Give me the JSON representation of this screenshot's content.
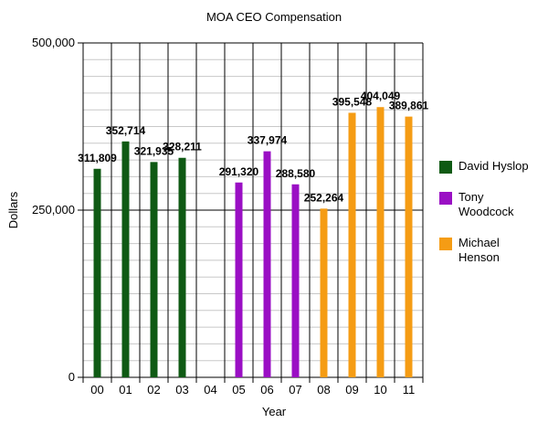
{
  "chart_data": {
    "type": "bar",
    "title": "MOA CEO Compensation",
    "xlabel": "Year",
    "ylabel": "Dollars",
    "ylim": [
      0,
      500000
    ],
    "yticks": [
      0,
      250000,
      500000
    ],
    "ytick_labels": [
      "0",
      "250,000",
      "500,000"
    ],
    "grid": true,
    "legend_position": "right",
    "categories": [
      "00",
      "01",
      "02",
      "03",
      "04",
      "05",
      "06",
      "07",
      "08",
      "09",
      "10",
      "11"
    ],
    "series": [
      {
        "name": "David Hyslop",
        "color": "#0f5a14",
        "values": [
          311809,
          352714,
          321935,
          328211,
          null,
          null,
          null,
          null,
          null,
          null,
          null,
          null
        ],
        "labels": [
          "311,809",
          "352,714",
          "321,935",
          "328,211",
          "",
          "",
          "",
          "",
          "",
          "",
          "",
          ""
        ]
      },
      {
        "name": "Tony Woodcock",
        "color": "#9a0fc4",
        "values": [
          null,
          null,
          null,
          null,
          null,
          291320,
          337974,
          288580,
          null,
          null,
          null,
          null
        ],
        "labels": [
          "",
          "",
          "",
          "",
          "",
          "291,320",
          "337,974",
          "288,580",
          "",
          "",
          "",
          ""
        ]
      },
      {
        "name": "Michael Henson",
        "color": "#f59c14",
        "values": [
          null,
          null,
          null,
          null,
          null,
          null,
          null,
          null,
          252264,
          395548,
          404049,
          389861
        ],
        "labels": [
          "",
          "",
          "",
          "",
          "",
          "",
          "",
          "",
          "252,264",
          "395,548",
          "404,049",
          "389,861"
        ]
      }
    ]
  }
}
